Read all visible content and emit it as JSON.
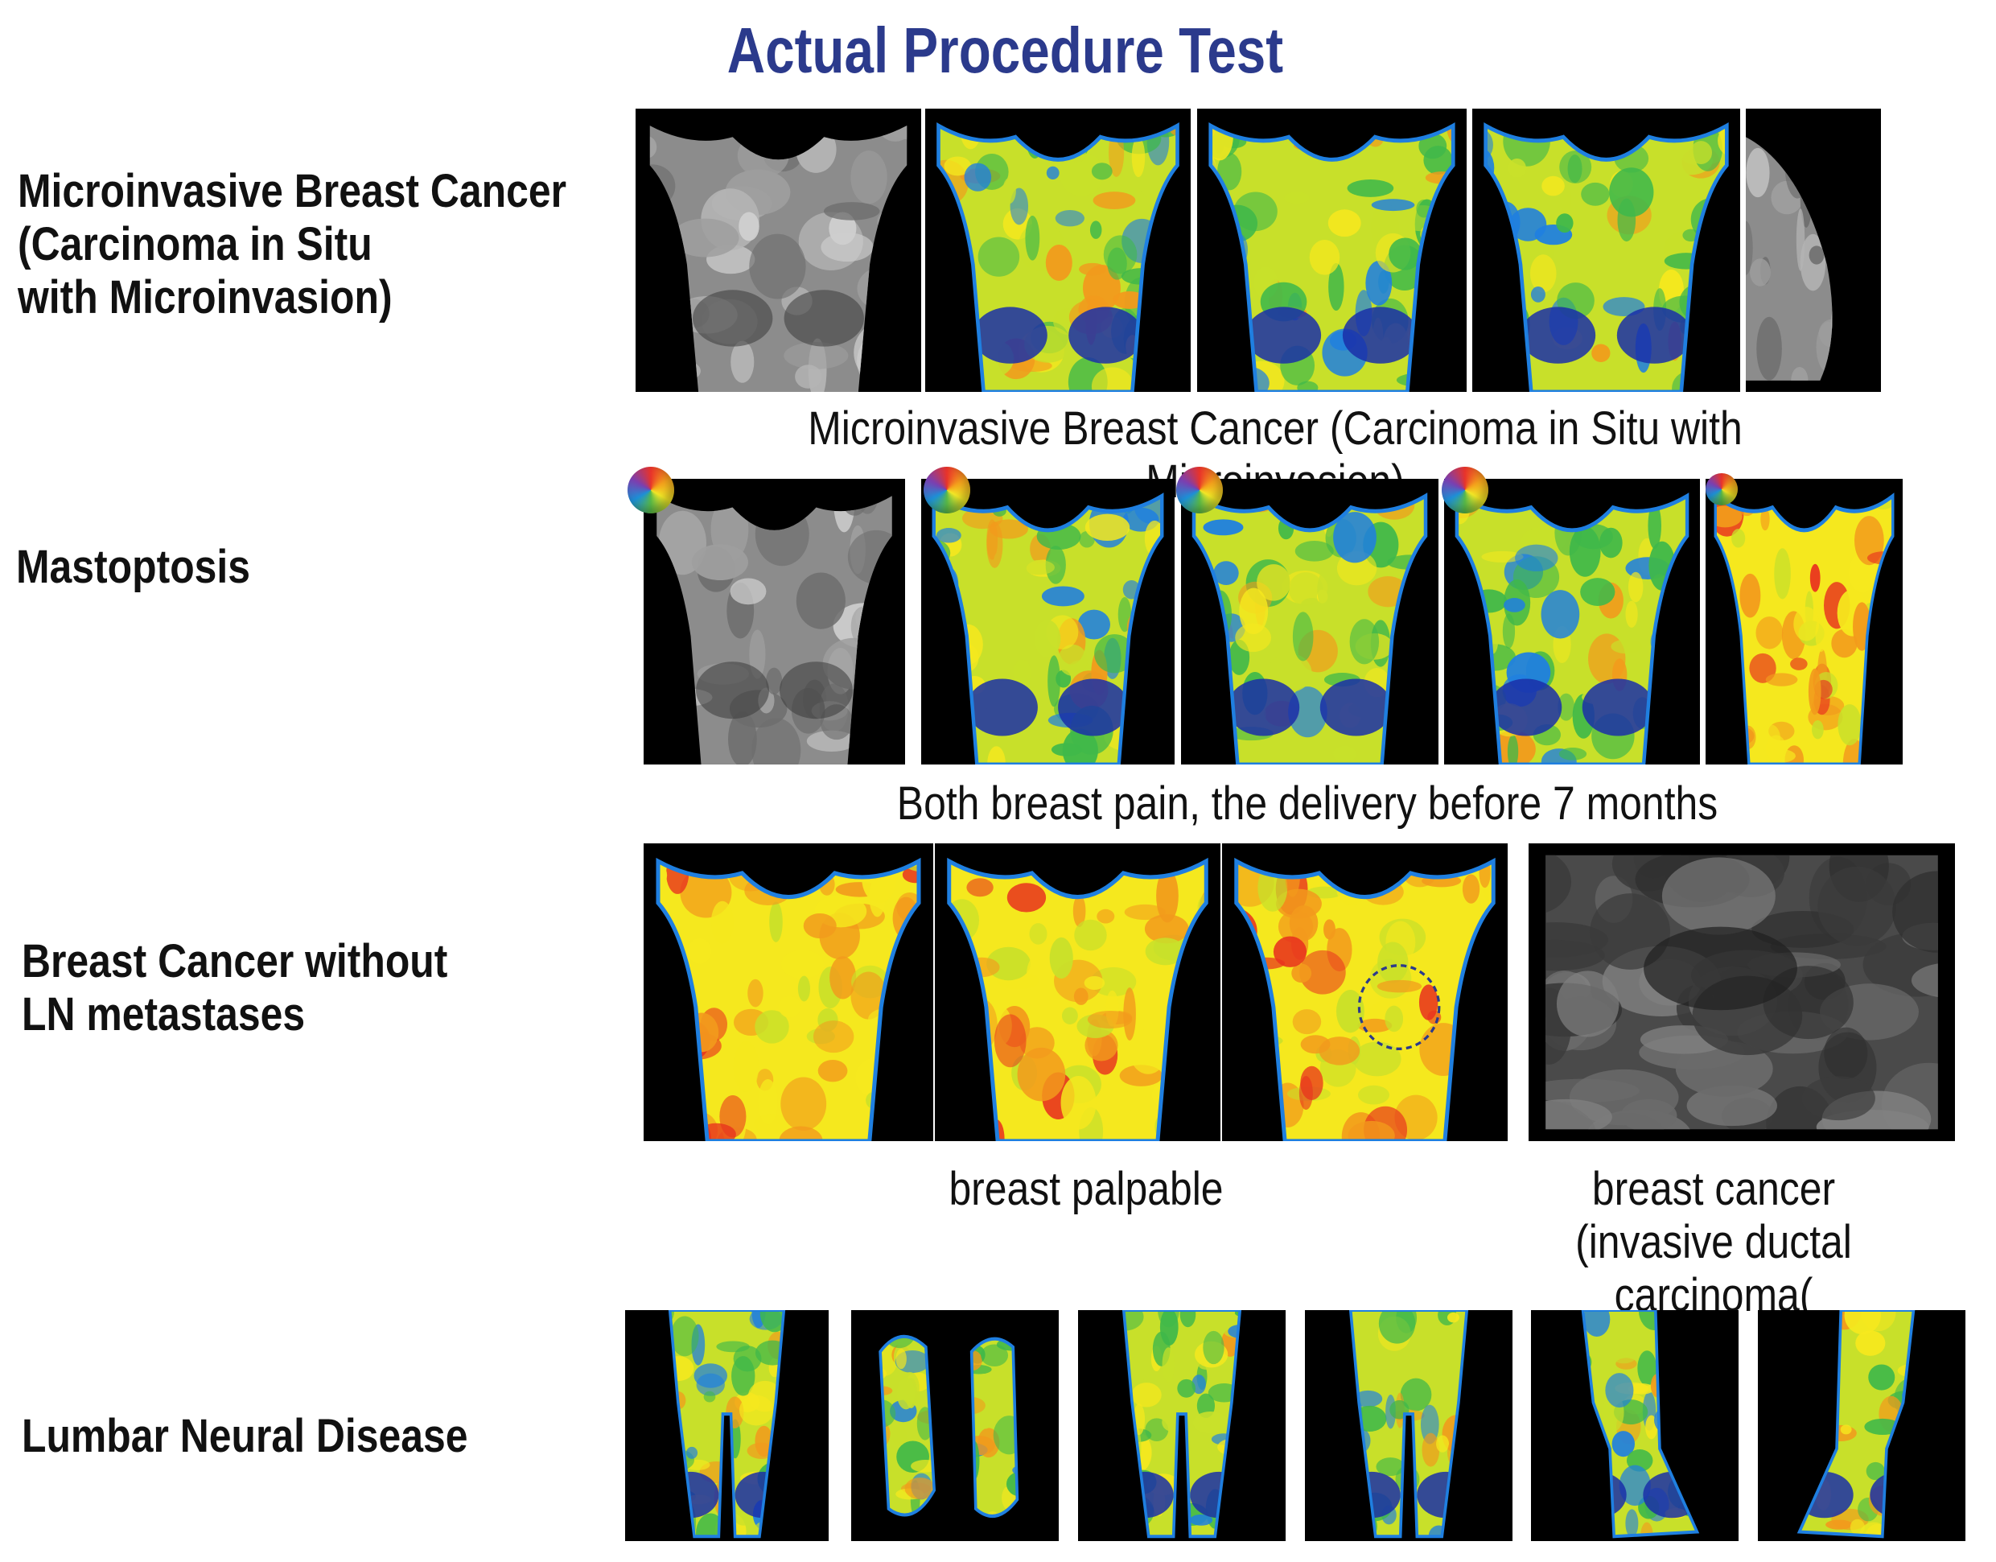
{
  "title": "Actual Procedure Test",
  "rows": [
    {
      "label": "Microinvasive Breast Cancer\n(Carcinoma in Situ\nwith Microinvasion)",
      "caption": "Microinvasive Breast Cancer (Carcinoma in Situ with Microinvasion)"
    },
    {
      "label": "Mastoptosis",
      "caption": "Both breast pain, the delivery before 7 months"
    },
    {
      "label": "Breast Cancer without\nLN metastases",
      "caption_left": "breast palpable",
      "caption_right": "breast cancer\n(invasive ductal carcinoma("
    },
    {
      "label": "Lumbar Neural Disease"
    }
  ],
  "colors": {
    "title": "#2b3a8c",
    "thermal_palette": [
      "#1a2fa8",
      "#1f7fe0",
      "#3fb84a",
      "#c8e02a",
      "#f5e81e",
      "#f29a1c",
      "#e8321e"
    ]
  },
  "icons": [
    "color-wheel-icon",
    "dashed-circle-marker"
  ]
}
